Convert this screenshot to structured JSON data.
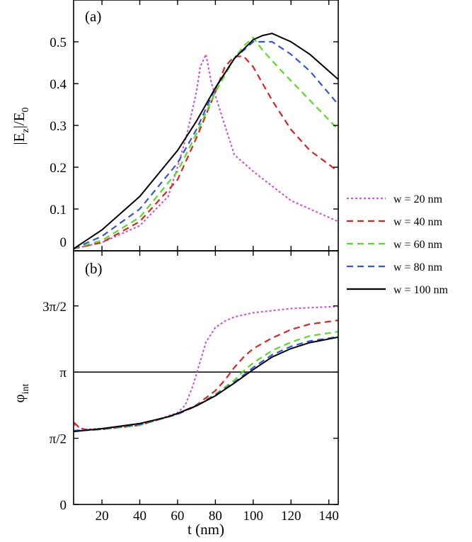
{
  "chart_data": [
    {
      "type": "line",
      "panel_label": "(a)",
      "ylabel_main": "|E",
      "ylabel_sub1": "z",
      "ylabel_mid": "|/E",
      "ylabel_sub2": "0",
      "xlim": [
        5,
        145
      ],
      "ylim": [
        0,
        0.6
      ],
      "yticks": [
        {
          "value": 0,
          "label": "0"
        },
        {
          "value": 0.1,
          "label": "0.1"
        },
        {
          "value": 0.2,
          "label": "0.2"
        },
        {
          "value": 0.3,
          "label": "0.3"
        },
        {
          "value": 0.4,
          "label": "0.4"
        },
        {
          "value": 0.5,
          "label": "0.5"
        }
      ],
      "series": [
        {
          "name": "w = 20 nm",
          "color": "#cc55dd",
          "dash": "dot",
          "x": [
            5,
            20,
            40,
            55,
            60,
            65,
            70,
            72,
            75,
            78,
            85,
            90,
            100,
            120,
            145
          ],
          "y": [
            0.005,
            0.02,
            0.06,
            0.13,
            0.2,
            0.28,
            0.38,
            0.44,
            0.47,
            0.4,
            0.3,
            0.23,
            0.19,
            0.12,
            0.07
          ]
        },
        {
          "name": "w = 40 nm",
          "color": "#dd2222",
          "dash": "dash",
          "x": [
            5,
            20,
            40,
            60,
            70,
            80,
            85,
            90,
            95,
            100,
            110,
            120,
            130,
            145
          ],
          "y": [
            0.005,
            0.02,
            0.07,
            0.17,
            0.27,
            0.38,
            0.44,
            0.465,
            0.465,
            0.44,
            0.36,
            0.29,
            0.24,
            0.19
          ]
        },
        {
          "name": "w = 60 nm",
          "color": "#55dd22",
          "dash": "dash",
          "x": [
            5,
            20,
            40,
            60,
            70,
            80,
            90,
            95,
            100,
            105,
            115,
            130,
            145
          ],
          "y": [
            0.005,
            0.025,
            0.08,
            0.19,
            0.28,
            0.38,
            0.46,
            0.49,
            0.51,
            0.48,
            0.43,
            0.36,
            0.29
          ]
        },
        {
          "name": "w = 80 nm",
          "color": "#3355dd",
          "dash": "dash",
          "x": [
            5,
            20,
            40,
            60,
            70,
            80,
            90,
            100,
            110,
            120,
            130,
            145
          ],
          "y": [
            0.005,
            0.035,
            0.1,
            0.21,
            0.29,
            0.39,
            0.46,
            0.5,
            0.5,
            0.47,
            0.43,
            0.35
          ]
        },
        {
          "name": "w = 100 nm",
          "color": "#000000",
          "dash": "solid",
          "x": [
            5,
            20,
            40,
            60,
            70,
            80,
            90,
            100,
            105,
            110,
            120,
            130,
            145
          ],
          "y": [
            0.005,
            0.05,
            0.13,
            0.24,
            0.31,
            0.39,
            0.46,
            0.505,
            0.515,
            0.52,
            0.5,
            0.47,
            0.41
          ]
        }
      ]
    },
    {
      "type": "line",
      "panel_label": "(b)",
      "ylabel_main": "φ",
      "ylabel_sub1": "int",
      "xlabel": "t (nm)",
      "xlim": [
        5,
        145
      ],
      "ylim": [
        0,
        6.02
      ],
      "xticks": [
        {
          "value": 20,
          "label": "20"
        },
        {
          "value": 40,
          "label": "40"
        },
        {
          "value": 60,
          "label": "60"
        },
        {
          "value": 80,
          "label": "80"
        },
        {
          "value": 100,
          "label": "100"
        },
        {
          "value": 120,
          "label": "120"
        },
        {
          "value": 140,
          "label": "140"
        }
      ],
      "yticks": [
        {
          "value": 0,
          "label": "0"
        },
        {
          "value": 1.5708,
          "label": "π/2"
        },
        {
          "value": 3.1416,
          "label": "π"
        },
        {
          "value": 4.7124,
          "label": "3π/2"
        }
      ],
      "reference_line": 3.1416,
      "series": [
        {
          "name": "w = 20 nm",
          "color": "#cc55dd",
          "dash": "dot",
          "x": [
            5,
            10,
            20,
            30,
            40,
            50,
            60,
            64,
            68,
            72,
            75,
            80,
            85,
            90,
            100,
            120,
            145
          ],
          "y": [
            1.9,
            1.78,
            1.8,
            1.85,
            1.92,
            2.02,
            2.18,
            2.35,
            2.8,
            3.4,
            3.85,
            4.2,
            4.35,
            4.45,
            4.55,
            4.65,
            4.7
          ]
        },
        {
          "name": "w = 40 nm",
          "color": "#dd2222",
          "dash": "dash",
          "x": [
            5,
            8,
            12,
            20,
            40,
            60,
            70,
            80,
            85,
            90,
            95,
            100,
            110,
            120,
            130,
            145
          ],
          "y": [
            1.95,
            1.83,
            1.76,
            1.78,
            1.88,
            2.15,
            2.36,
            2.7,
            2.95,
            3.25,
            3.5,
            3.7,
            3.95,
            4.15,
            4.28,
            4.37
          ]
        },
        {
          "name": "w = 60 nm",
          "color": "#55dd22",
          "dash": "dash",
          "x": [
            5,
            20,
            40,
            60,
            70,
            80,
            90,
            95,
            100,
            110,
            120,
            130,
            145
          ],
          "y": [
            1.75,
            1.78,
            1.88,
            2.14,
            2.34,
            2.62,
            2.95,
            3.17,
            3.36,
            3.65,
            3.85,
            4.0,
            4.1
          ]
        },
        {
          "name": "w = 80 nm",
          "color": "#3355dd",
          "dash": "dash",
          "x": [
            5,
            20,
            40,
            60,
            70,
            80,
            90,
            100,
            110,
            120,
            130,
            145
          ],
          "y": [
            1.75,
            1.79,
            1.9,
            2.14,
            2.34,
            2.6,
            2.9,
            3.25,
            3.55,
            3.75,
            3.88,
            3.98
          ]
        },
        {
          "name": "w = 100 nm",
          "color": "#000000",
          "dash": "solid",
          "x": [
            5,
            20,
            40,
            55,
            60,
            70,
            80,
            90,
            100,
            110,
            120,
            130,
            145
          ],
          "y": [
            1.73,
            1.8,
            1.92,
            2.08,
            2.16,
            2.34,
            2.58,
            2.88,
            3.2,
            3.5,
            3.7,
            3.84,
            3.97
          ]
        }
      ]
    }
  ],
  "legend": {
    "placement": "right",
    "entries": [
      {
        "label": "w = 20 nm",
        "color": "#cc55dd",
        "dash": "dot"
      },
      {
        "label": "w = 40 nm",
        "color": "#dd2222",
        "dash": "dash"
      },
      {
        "label": "w = 60 nm",
        "color": "#55dd22",
        "dash": "dash"
      },
      {
        "label": "w = 80 nm",
        "color": "#3355dd",
        "dash": "dash"
      },
      {
        "label": "w = 100 nm",
        "color": "#000000",
        "dash": "solid"
      }
    ]
  }
}
